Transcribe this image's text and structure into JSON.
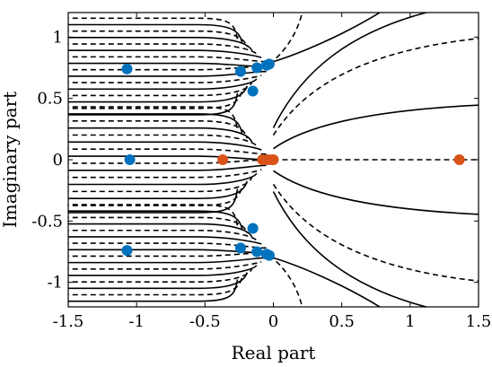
{
  "chart_data": {
    "type": "scatter",
    "xlabel": "Real part",
    "ylabel": "Imaginary part",
    "xlim": [
      -1.5,
      1.5
    ],
    "ylim": [
      -1.2,
      1.2
    ],
    "xticks": [
      -1.5,
      -1,
      -0.5,
      0,
      0.5,
      1,
      1.5
    ],
    "xtick_labels": [
      "-1.5",
      "-1",
      "-0.5",
      "0",
      "0.5",
      "1",
      "1.5"
    ],
    "yticks": [
      -1,
      -0.5,
      0,
      0.5,
      1
    ],
    "ytick_labels": [
      "-1",
      "-0.5",
      "0",
      "0.5",
      "1"
    ],
    "grid": false,
    "series": [
      {
        "color": "#0072BD",
        "points": [
          [
            -1.07,
            0.74
          ],
          [
            -0.24,
            0.72
          ],
          [
            -0.12,
            0.75
          ],
          [
            -0.05,
            0.77
          ],
          [
            -0.03,
            0.78
          ],
          [
            -0.15,
            0.56
          ],
          [
            -1.05,
            0.0
          ],
          [
            -1.07,
            -0.74
          ],
          [
            -0.24,
            -0.72
          ],
          [
            -0.12,
            -0.75
          ],
          [
            -0.05,
            -0.77
          ],
          [
            -0.03,
            -0.78
          ],
          [
            -0.15,
            -0.56
          ]
        ]
      },
      {
        "color": "#D95319",
        "points": [
          [
            -0.37,
            0.0
          ],
          [
            -0.08,
            0.0
          ],
          [
            -0.04,
            0.0
          ],
          [
            -0.01,
            0.0
          ],
          [
            0.0,
            0.0
          ],
          [
            1.36,
            0.0
          ]
        ]
      }
    ],
    "contours": {
      "solid_color": "#000000",
      "dashed_color": "#000000",
      "description_levels": "alternating solid/dashed contour lines"
    }
  }
}
